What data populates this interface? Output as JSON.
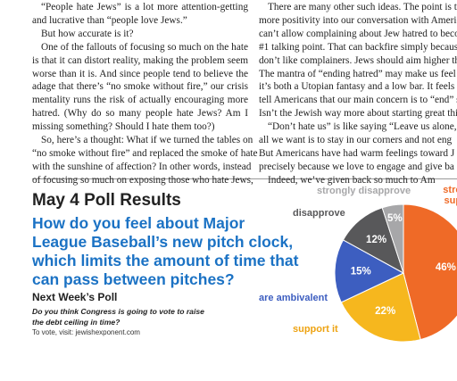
{
  "article": {
    "left_lines": [
      "“People hate Jews” is a lot more attention-getting",
      "and lucrative than “people love Jews.”",
      "But how accurate is it?",
      "One of the fallouts of focusing so much on the hate",
      "is that it can distort reality, making the problem seem",
      "worse than it is. And since people tend to believe the",
      "adage that there’s “no smoke without fire,” our crisis",
      "mentality runs the risk of actually encouraging more",
      "hatred. (Why do so many people hate Jews? Am I",
      "missing something? Should I hate them too?)",
      "So, here’s a thought: What if we turned the tables on",
      "“no smoke without fire” and replaced the smoke of hate",
      "with the sunshine of affection? In other words, instead",
      "of focusing so much on exposing those who hate Jews,"
    ],
    "right_lines": [
      "There are many other such ideas. The point is to i",
      "more positivity into our conversation with America",
      "can’t allow complaining about Jew hatred to becom",
      "#1 talking point. That can backfire simply because pe",
      "don’t like complainers. Jews should aim higher than",
      "The mantra of “ending hatred” may make us feel good",
      "it’s both a Utopian fantasy and a low bar. It feels limiti",
      "tell Americans that our main concern is to “end” somet",
      "Isn’t the Jewish way more about starting great things?",
      "“Don’t hate us” is like saying “Leave us alone,”",
      "all we want is to stay in our corners and not eng",
      "But Americans have had warm feelings toward J",
      "precisely because we love to engage and give ba",
      "Indeed, we’ve given back so much to Am"
    ]
  },
  "poll": {
    "heading": "May 4 Poll Results",
    "next_heading": "Next Week’s Poll",
    "next_question": "Do you think Congress is going to vote to raise the debt ceiling in time?",
    "vote_note": "To vote, visit: jewishexponent.com"
  },
  "chart_data": {
    "type": "pie",
    "title": "How do you feel about Major League Baseball’s new pitch clock, which limits the amount of time that can pass between pitches?",
    "categories": [
      "strongly support",
      "support it",
      "are ambivalent",
      "disapprove",
      "strongly disapprove"
    ],
    "values": [
      46,
      22,
      15,
      12,
      5
    ],
    "value_labels": [
      "46%",
      "22%",
      "15%",
      "12%",
      "5%"
    ],
    "colors": [
      "#ef6a27",
      "#f6b71e",
      "#3d5ec0",
      "#58585a",
      "#a7a7a9"
    ]
  }
}
